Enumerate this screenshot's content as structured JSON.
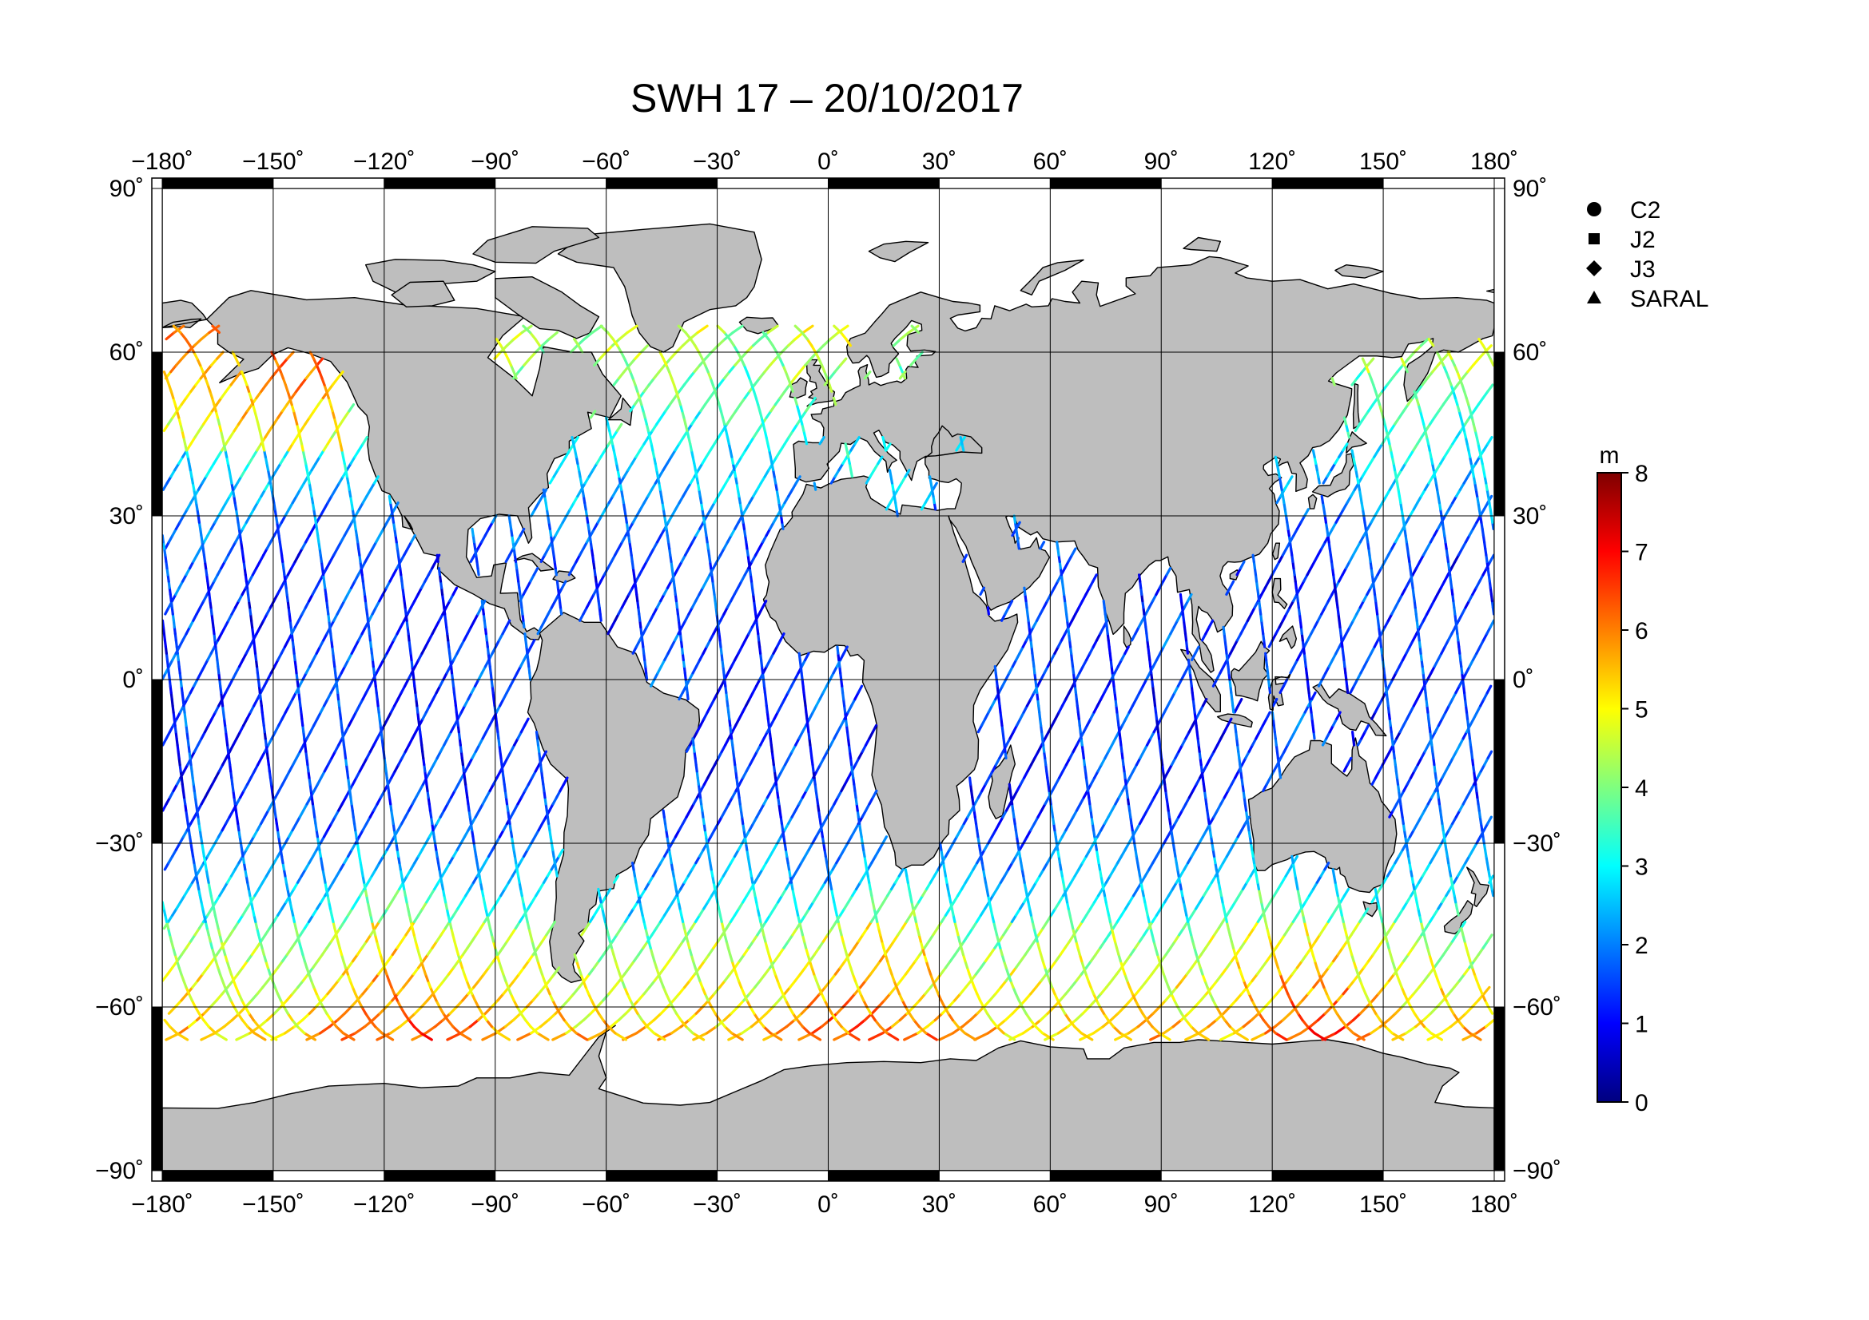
{
  "title": "SWH 17 – 20/10/2017",
  "lon_ticks": [
    {
      "value": -180,
      "label": "−180˚"
    },
    {
      "value": -150,
      "label": "−150˚"
    },
    {
      "value": -120,
      "label": "−120˚"
    },
    {
      "value": -90,
      "label": "−90˚"
    },
    {
      "value": -60,
      "label": "−60˚"
    },
    {
      "value": -30,
      "label": "−30˚"
    },
    {
      "value": 0,
      "label": "0˚"
    },
    {
      "value": 30,
      "label": "30˚"
    },
    {
      "value": 60,
      "label": "60˚"
    },
    {
      "value": 90,
      "label": "90˚"
    },
    {
      "value": 120,
      "label": "120˚"
    },
    {
      "value": 150,
      "label": "150˚"
    },
    {
      "value": 180,
      "label": "180˚"
    }
  ],
  "lat_ticks": [
    {
      "value": 90,
      "label": "90˚"
    },
    {
      "value": 60,
      "label": "60˚"
    },
    {
      "value": 30,
      "label": "30˚"
    },
    {
      "value": 0,
      "label": "0˚"
    },
    {
      "value": -30,
      "label": "−30˚"
    },
    {
      "value": -60,
      "label": "−60˚"
    },
    {
      "value": -90,
      "label": "−90˚"
    }
  ],
  "legend": {
    "items": [
      {
        "symbol": "circle",
        "label": "C2"
      },
      {
        "symbol": "square",
        "label": "J2"
      },
      {
        "symbol": "diamond",
        "label": "J3"
      },
      {
        "symbol": "triangle",
        "label": "SARAL"
      }
    ]
  },
  "colorbar": {
    "unit": "m",
    "min": 0,
    "max": 8,
    "ticks": [
      "0",
      "1",
      "2",
      "3",
      "4",
      "5",
      "6",
      "7",
      "8"
    ],
    "colors": [
      "#00007f",
      "#0000ff",
      "#007fff",
      "#00ffff",
      "#7fff7f",
      "#ffff00",
      "#ff7f00",
      "#ff0000",
      "#7f0000"
    ]
  },
  "chart_data": {
    "type": "map",
    "projection": "equirectangular",
    "lon_range": [
      -180,
      180
    ],
    "lat_range": [
      -90,
      90
    ],
    "grid": true,
    "land_color": "#bebebe",
    "ocean_color": "#ffffff",
    "variable": "SWH",
    "unit": "m",
    "value_range": [
      0,
      8
    ],
    "tracks_lat_range": [
      -66,
      66
    ]
  }
}
